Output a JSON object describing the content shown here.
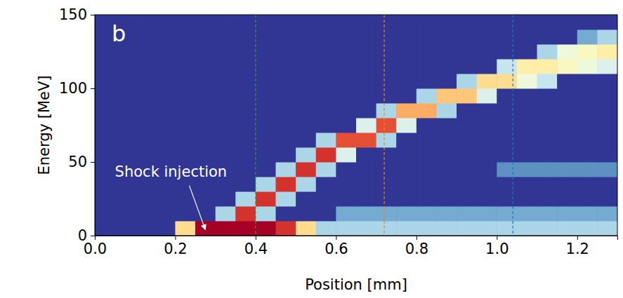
{
  "chart_data": {
    "type": "heatmap",
    "panel_label": "b",
    "x_label": "Position [mm]",
    "y_label": "Energy [MeV]",
    "xlim": [
      0,
      1.3
    ],
    "ylim": [
      0,
      150
    ],
    "xticks": [
      {
        "value": 0,
        "label": "0.0"
      },
      0.2,
      0.4,
      0.6,
      0.8,
      {
        "value": 1,
        "label": "1.0"
      },
      1.2
    ],
    "yticks": [
      0,
      50,
      100,
      150
    ],
    "grid": false,
    "zlim": [
      0,
      1
    ],
    "x_bins": [
      0,
      0.05,
      0.1,
      0.15,
      0.2,
      0.25,
      0.3,
      0.35,
      0.4,
      0.45,
      0.5,
      0.55,
      0.6,
      0.65,
      0.7,
      0.75,
      0.8,
      0.85,
      0.9,
      0.95,
      1,
      1.05,
      1.1,
      1.15,
      1.2,
      1.25,
      1.3
    ],
    "y_bins": [
      0,
      10,
      20,
      30,
      40,
      50,
      60,
      70,
      80,
      90,
      100,
      110,
      120,
      130,
      140,
      150
    ],
    "z": [
      [
        0,
        0,
        0,
        0,
        0.6,
        1,
        1,
        1,
        1,
        0.9,
        0.6,
        0.3,
        0.3,
        0.3,
        0.3,
        0.3,
        0.3,
        0.3,
        0.3,
        0.3,
        0.3,
        0.3,
        0.3,
        0.3,
        0.3,
        0.3
      ],
      [
        0,
        0,
        0,
        0,
        0,
        0,
        0.3,
        0.9,
        0.3,
        0,
        0,
        0,
        0.2,
        0.2,
        0.2,
        0.2,
        0.2,
        0.2,
        0.2,
        0.2,
        0.2,
        0.2,
        0.2,
        0.2,
        0.2,
        0.2
      ],
      [
        0,
        0,
        0,
        0,
        0,
        0,
        0,
        0.3,
        0.9,
        0.3,
        0,
        0,
        0,
        0,
        0,
        0,
        0,
        0,
        0,
        0,
        0,
        0,
        0,
        0,
        0,
        0
      ],
      [
        0,
        0,
        0,
        0,
        0,
        0,
        0,
        0,
        0.3,
        0.9,
        0.3,
        0,
        0,
        0,
        0,
        0,
        0,
        0,
        0,
        0,
        0,
        0,
        0,
        0,
        0,
        0
      ],
      [
        0,
        0,
        0,
        0,
        0,
        0,
        0,
        0,
        0,
        0.3,
        0.9,
        0.3,
        0,
        0,
        0,
        0,
        0,
        0,
        0,
        0,
        0.15,
        0.15,
        0.15,
        0.15,
        0.15,
        0.15
      ],
      [
        0,
        0,
        0,
        0,
        0,
        0,
        0,
        0,
        0,
        0,
        0.3,
        0.9,
        0.4,
        0,
        0,
        0,
        0,
        0,
        0,
        0,
        0,
        0,
        0,
        0,
        0,
        0
      ],
      [
        0,
        0,
        0,
        0,
        0,
        0,
        0,
        0,
        0,
        0,
        0,
        0.3,
        0.85,
        0.85,
        0.3,
        0,
        0,
        0,
        0,
        0,
        0,
        0,
        0,
        0,
        0,
        0
      ],
      [
        0,
        0,
        0,
        0,
        0,
        0,
        0,
        0,
        0,
        0,
        0,
        0,
        0,
        0.4,
        0.85,
        0.4,
        0,
        0,
        0,
        0,
        0,
        0,
        0,
        0,
        0,
        0
      ],
      [
        0,
        0,
        0,
        0,
        0,
        0,
        0,
        0,
        0,
        0,
        0,
        0,
        0,
        0,
        0.3,
        0.7,
        0.7,
        0.3,
        0,
        0,
        0,
        0,
        0,
        0,
        0,
        0
      ],
      [
        0,
        0,
        0,
        0,
        0,
        0,
        0,
        0,
        0,
        0,
        0,
        0,
        0,
        0,
        0,
        0,
        0.3,
        0.65,
        0.65,
        0.4,
        0,
        0,
        0,
        0,
        0,
        0
      ],
      [
        0,
        0,
        0,
        0,
        0,
        0,
        0,
        0,
        0,
        0,
        0,
        0,
        0,
        0,
        0,
        0,
        0,
        0,
        0.3,
        0.6,
        0.6,
        0.45,
        0.35,
        0,
        0,
        0
      ],
      [
        0,
        0,
        0,
        0,
        0,
        0,
        0,
        0,
        0,
        0,
        0,
        0,
        0,
        0,
        0,
        0,
        0,
        0,
        0,
        0,
        0.35,
        0.55,
        0.55,
        0.5,
        0.45,
        0.4
      ],
      [
        0,
        0,
        0,
        0,
        0,
        0,
        0,
        0,
        0,
        0,
        0,
        0,
        0,
        0,
        0,
        0,
        0,
        0,
        0,
        0,
        0,
        0,
        0.3,
        0.45,
        0.5,
        0.55
      ],
      [
        0,
        0,
        0,
        0,
        0,
        0,
        0,
        0,
        0,
        0,
        0,
        0,
        0,
        0,
        0,
        0,
        0,
        0,
        0,
        0,
        0,
        0,
        0,
        0,
        0.2,
        0.3
      ],
      [
        0,
        0,
        0,
        0,
        0,
        0,
        0,
        0,
        0,
        0,
        0,
        0,
        0,
        0,
        0,
        0,
        0,
        0,
        0,
        0,
        0,
        0,
        0,
        0,
        0,
        0
      ]
    ],
    "vlines": [
      {
        "x": 0.4,
        "color": "#2ca02c",
        "line_style": "dashed"
      },
      {
        "x": 0.72,
        "color": "#ff7f0e",
        "line_style": "dashed"
      },
      {
        "x": 1.04,
        "color": "#1f77b4",
        "line_style": "dashed"
      }
    ],
    "annotation": {
      "text": "Shock injection",
      "x": 0.05,
      "y": 40,
      "arrow_from": [
        0.235,
        34
      ],
      "arrow_to": [
        0.275,
        4
      ]
    }
  }
}
